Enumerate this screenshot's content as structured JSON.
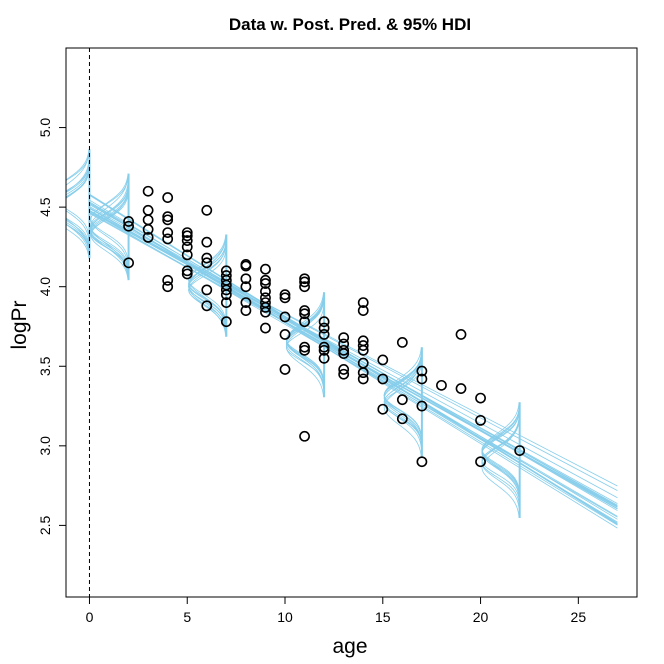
{
  "chart_data": {
    "type": "scatter",
    "title": "Data w. Post. Pred. & 95% HDI",
    "xlabel": "age",
    "ylabel": "logPr",
    "xlim": [
      -1.2,
      28.0
    ],
    "ylim": [
      2.05,
      5.5
    ],
    "x_ticks": [
      0,
      5,
      10,
      15,
      20,
      25
    ],
    "y_ticks": [
      2.5,
      3.0,
      3.5,
      4.0,
      4.5,
      5.0
    ],
    "x_tick_labels": [
      "0",
      "5",
      "10",
      "15",
      "20",
      "25"
    ],
    "y_tick_labels": [
      "2.5",
      "3.0",
      "3.5",
      "4.0",
      "4.5",
      "5.0"
    ],
    "reference_line_x": 0,
    "grid": false,
    "points": [
      [
        2,
        4.41
      ],
      [
        2,
        4.38
      ],
      [
        2,
        4.15
      ],
      [
        3,
        4.6
      ],
      [
        3,
        4.48
      ],
      [
        3,
        4.42
      ],
      [
        3,
        4.36
      ],
      [
        3,
        4.31
      ],
      [
        4,
        4.56
      ],
      [
        4,
        4.44
      ],
      [
        4,
        4.42
      ],
      [
        4,
        4.34
      ],
      [
        4,
        4.3
      ],
      [
        4,
        4.04
      ],
      [
        4,
        4.0
      ],
      [
        5,
        4.34
      ],
      [
        5,
        4.32
      ],
      [
        5,
        4.29
      ],
      [
        5,
        4.25
      ],
      [
        5,
        4.2
      ],
      [
        5,
        4.1
      ],
      [
        5,
        4.08
      ],
      [
        6,
        4.48
      ],
      [
        6,
        4.28
      ],
      [
        6,
        4.18
      ],
      [
        6,
        4.15
      ],
      [
        6,
        3.98
      ],
      [
        6,
        3.88
      ],
      [
        7,
        4.1
      ],
      [
        7,
        4.07
      ],
      [
        7,
        4.04
      ],
      [
        7,
        4.01
      ],
      [
        7,
        3.98
      ],
      [
        7,
        3.95
      ],
      [
        7,
        3.9
      ],
      [
        7,
        3.78
      ],
      [
        8,
        4.14
      ],
      [
        8,
        4.13
      ],
      [
        8,
        4.05
      ],
      [
        8,
        4.0
      ],
      [
        8,
        3.9
      ],
      [
        8,
        3.85
      ],
      [
        9,
        4.11
      ],
      [
        9,
        4.04
      ],
      [
        9,
        4.02
      ],
      [
        9,
        3.97
      ],
      [
        9,
        3.93
      ],
      [
        9,
        3.9
      ],
      [
        9,
        3.87
      ],
      [
        9,
        3.84
      ],
      [
        9,
        3.74
      ],
      [
        10,
        3.95
      ],
      [
        10,
        3.93
      ],
      [
        10,
        3.81
      ],
      [
        10,
        3.7
      ],
      [
        10,
        3.48
      ],
      [
        11,
        4.05
      ],
      [
        11,
        4.03
      ],
      [
        11,
        4.0
      ],
      [
        11,
        3.85
      ],
      [
        11,
        3.83
      ],
      [
        11,
        3.78
      ],
      [
        11,
        3.62
      ],
      [
        11,
        3.6
      ],
      [
        11,
        3.06
      ],
      [
        12,
        3.78
      ],
      [
        12,
        3.74
      ],
      [
        12,
        3.7
      ],
      [
        12,
        3.62
      ],
      [
        12,
        3.6
      ],
      [
        12,
        3.55
      ],
      [
        13,
        3.68
      ],
      [
        13,
        3.64
      ],
      [
        13,
        3.6
      ],
      [
        13,
        3.58
      ],
      [
        13,
        3.48
      ],
      [
        13,
        3.45
      ],
      [
        14,
        3.9
      ],
      [
        14,
        3.85
      ],
      [
        14,
        3.66
      ],
      [
        14,
        3.63
      ],
      [
        14,
        3.6
      ],
      [
        14,
        3.52
      ],
      [
        14,
        3.46
      ],
      [
        14,
        3.42
      ],
      [
        15,
        3.54
      ],
      [
        15,
        3.42
      ],
      [
        15,
        3.23
      ],
      [
        16,
        3.65
      ],
      [
        16,
        3.29
      ],
      [
        16,
        3.17
      ],
      [
        17,
        3.47
      ],
      [
        17,
        3.42
      ],
      [
        17,
        3.25
      ],
      [
        17,
        2.9
      ],
      [
        18,
        3.38
      ],
      [
        19,
        3.7
      ],
      [
        19,
        3.36
      ],
      [
        20,
        3.3
      ],
      [
        20,
        3.16
      ],
      [
        20,
        2.9
      ],
      [
        22,
        2.97
      ]
    ],
    "posterior_lines_color": "#87CEEB",
    "posterior_line_count": 20,
    "posterior_intercept_center": 4.51,
    "posterior_slope_center": -0.0706,
    "hdi_x_positions": [
      0,
      2,
      7,
      12,
      17,
      22
    ],
    "point_color": "#000000"
  }
}
